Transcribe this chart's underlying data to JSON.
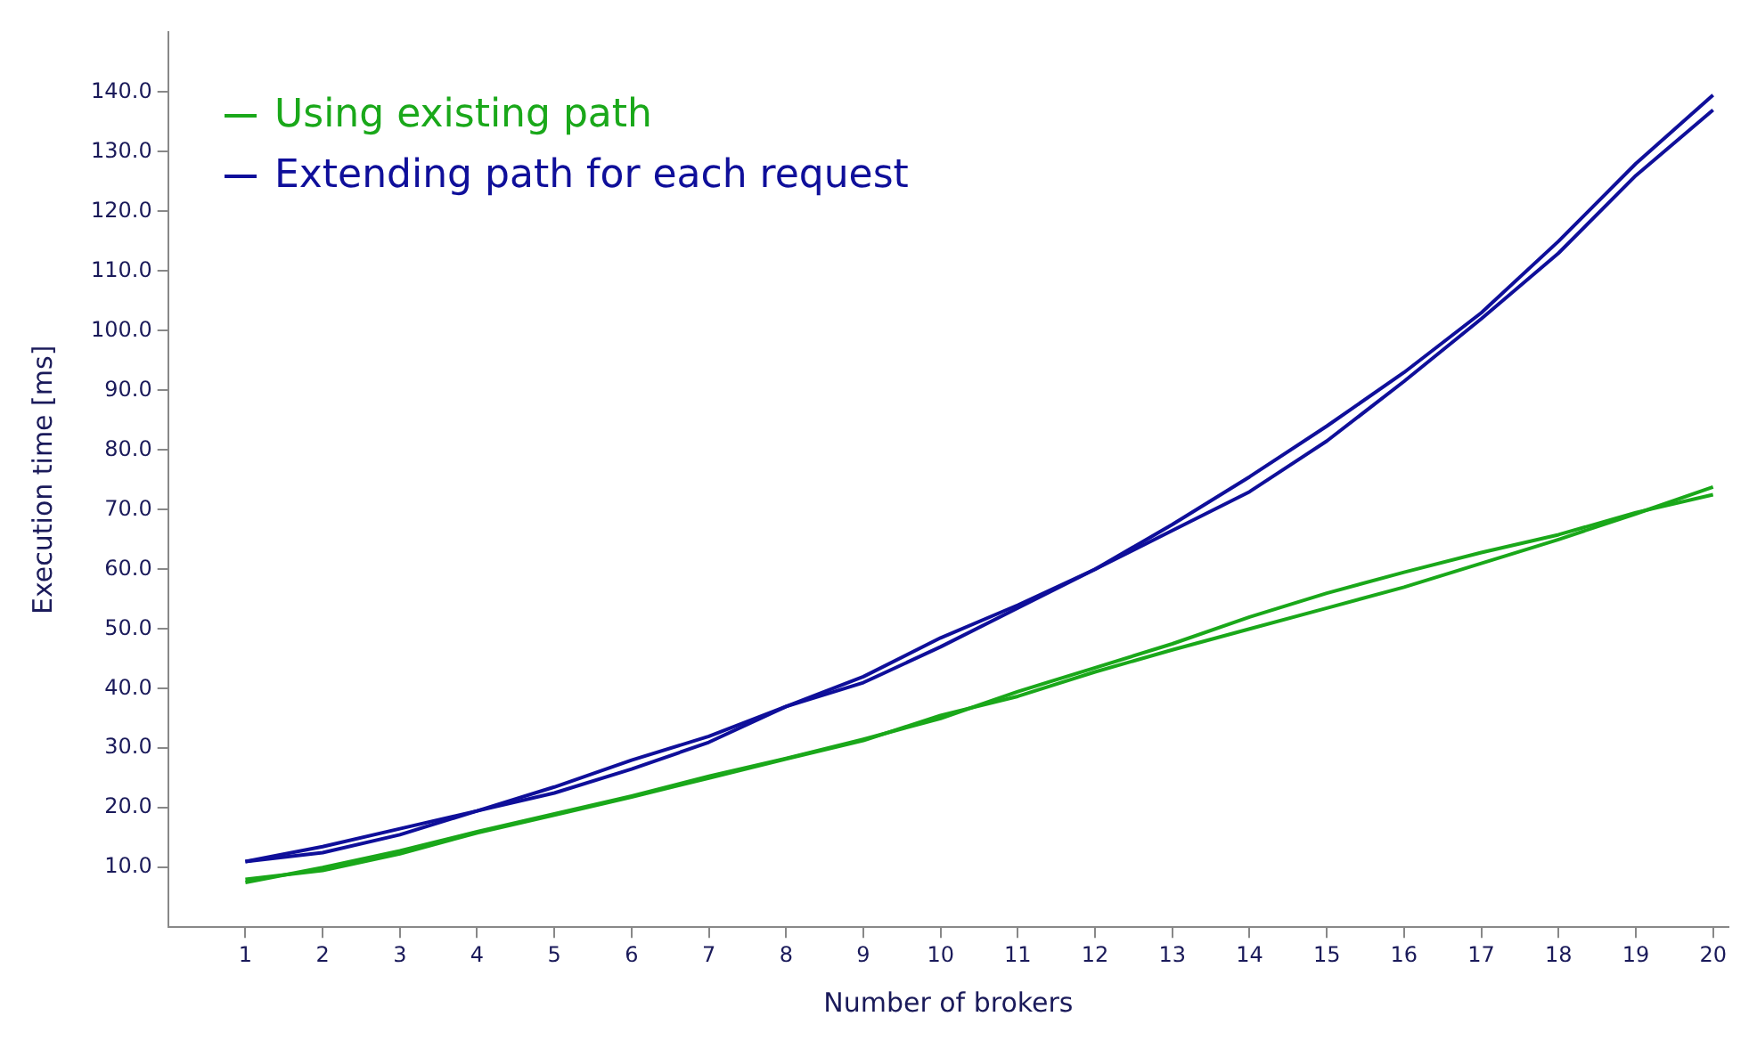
{
  "chart_data": {
    "type": "line",
    "xlabel": "Number of brokers",
    "ylabel": "Execution time [ms]",
    "x": [
      1,
      2,
      3,
      4,
      5,
      6,
      7,
      8,
      9,
      10,
      11,
      12,
      13,
      14,
      15,
      16,
      17,
      18,
      19,
      20
    ],
    "xlim": [
      0,
      20.2
    ],
    "xticks": [
      1,
      2,
      3,
      4,
      5,
      6,
      7,
      8,
      9,
      10,
      11,
      12,
      13,
      14,
      15,
      16,
      17,
      18,
      19,
      20
    ],
    "ylim": [
      0,
      150
    ],
    "yticks": [
      {
        "value": 10,
        "label": "10.0"
      },
      {
        "value": 20,
        "label": "20.0"
      },
      {
        "value": 30,
        "label": "30.0"
      },
      {
        "value": 40,
        "label": "40.0"
      },
      {
        "value": 50,
        "label": "50.0"
      },
      {
        "value": 60,
        "label": "60.0"
      },
      {
        "value": 70,
        "label": "70.0"
      },
      {
        "value": 80,
        "label": "80.0"
      },
      {
        "value": 90,
        "label": "90.0"
      },
      {
        "value": 100,
        "label": "100.0"
      },
      {
        "value": 110,
        "label": "110.0"
      },
      {
        "value": 120,
        "label": "120.0"
      },
      {
        "value": 130,
        "label": "130.0"
      },
      {
        "value": 140,
        "label": "140.0"
      }
    ],
    "series": [
      {
        "name": "Using existing path",
        "color": "#1aa81a",
        "values": [
          7.5,
          10,
          12.8,
          16,
          19,
          22,
          25.3,
          28.3,
          31.5,
          35,
          39.5,
          43.5,
          47.5,
          52,
          56,
          59.5,
          62.8,
          65.8,
          69.5,
          72.5
        ]
      },
      {
        "color": "#1aa81a",
        "values": [
          8,
          9.5,
          12.3,
          15.8,
          18.8,
          21.8,
          25,
          28.2,
          31.3,
          35.5,
          38.7,
          42.8,
          46.5,
          50,
          53.5,
          57,
          61,
          65,
          69.3,
          73.8
        ]
      },
      {
        "name": "Extending path for each request",
        "color": "#0f0f9a",
        "values": [
          11,
          13.5,
          16.5,
          19.5,
          23.5,
          28,
          32,
          37,
          42,
          48.5,
          54,
          60,
          67.5,
          75.5,
          84,
          93,
          103,
          115,
          128,
          139.5
        ]
      },
      {
        "color": "#0f0f9a",
        "values": [
          11,
          12.5,
          15.5,
          19.5,
          22.5,
          26.5,
          31,
          37,
          41,
          47,
          53.5,
          60,
          66.5,
          73,
          81.5,
          91.5,
          102,
          113,
          126,
          137
        ]
      }
    ],
    "grid": false,
    "legend": "top left",
    "marker": "none",
    "line_style": "solid"
  }
}
